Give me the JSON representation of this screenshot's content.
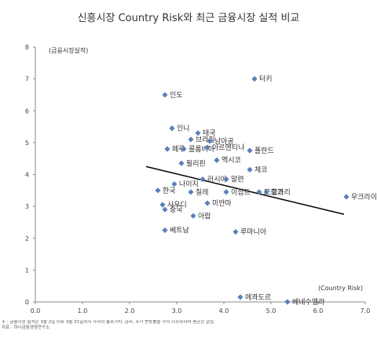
{
  "chart_data": {
    "type": "scatter",
    "title": "신흥시장 Country Risk와 최근 금융시장 실적 비교",
    "xlabel": "(Country Risk)",
    "ylabel": "(금융시장실적)",
    "xlim": [
      0,
      7
    ],
    "ylim": [
      0,
      8
    ],
    "x_ticks": [
      "0.0",
      "1.0",
      "2.0",
      "3.0",
      "4.0",
      "5.0",
      "6.0",
      "7.0"
    ],
    "y_ticks": [
      "0",
      "1",
      "2",
      "3",
      "4",
      "5",
      "6",
      "7",
      "8"
    ],
    "marker_color": "#5b7fb5",
    "trend_color": "#000000",
    "trendline": {
      "x": [
        2.35,
        6.55
      ],
      "y": [
        4.25,
        2.75
      ]
    },
    "points": [
      {
        "label": "터키",
        "x": 4.65,
        "y": 7.0
      },
      {
        "label": "인도",
        "x": 2.75,
        "y": 6.5
      },
      {
        "label": "태국",
        "x": 3.45,
        "y": 5.3
      },
      {
        "label": "인니",
        "x": 2.9,
        "y": 5.45
      },
      {
        "label": "브라질",
        "x": 3.3,
        "y": 5.1
      },
      {
        "label": "남아공",
        "x": 3.7,
        "y": 5.05
      },
      {
        "label": "페루",
        "x": 2.8,
        "y": 4.8
      },
      {
        "label": "콜롬비아",
        "x": 3.15,
        "y": 4.8
      },
      {
        "label": "아르헨티나",
        "x": 3.65,
        "y": 4.85
      },
      {
        "label": "폴란드",
        "x": 4.55,
        "y": 4.75
      },
      {
        "label": "멕시코",
        "x": 3.85,
        "y": 4.45
      },
      {
        "label": "필리핀",
        "x": 3.1,
        "y": 4.35
      },
      {
        "label": "체코",
        "x": 4.55,
        "y": 4.15
      },
      {
        "label": "러시아",
        "x": 3.55,
        "y": 3.85
      },
      {
        "label": "말련",
        "x": 4.05,
        "y": 3.85
      },
      {
        "label": "나이지",
        "x": 2.95,
        "y": 3.7
      },
      {
        "label": "한국",
        "x": 2.6,
        "y": 3.5
      },
      {
        "label": "칠레",
        "x": 3.3,
        "y": 3.45
      },
      {
        "label": "이집트",
        "x": 4.05,
        "y": 3.45
      },
      {
        "label": "모로코",
        "x": 4.75,
        "y": 3.45
      },
      {
        "label": "헝가리",
        "x": 4.9,
        "y": 3.45
      },
      {
        "label": "우크라이나",
        "x": 6.6,
        "y": 3.3
      },
      {
        "label": "사우디",
        "x": 2.7,
        "y": 3.05
      },
      {
        "label": "미얀마",
        "x": 3.65,
        "y": 3.1
      },
      {
        "label": "중국",
        "x": 2.75,
        "y": 2.9
      },
      {
        "label": "아랍",
        "x": 3.35,
        "y": 2.7
      },
      {
        "label": "베트남",
        "x": 2.75,
        "y": 2.25
      },
      {
        "label": "루마니아",
        "x": 4.25,
        "y": 2.2
      },
      {
        "label": "에콰도르",
        "x": 4.35,
        "y": 0.15
      },
      {
        "label": "베네수엘라",
        "x": 5.35,
        "y": 0.0
      }
    ]
  },
  "footnote": "주 : 금융시장 실적은 3월 2일 이후 3월 31일까지 각국의 통화가치, 금리, 주가 변동률을 각각 지수화하여 평균한 값임",
  "source": "자료 : 하나금융경영연구소"
}
